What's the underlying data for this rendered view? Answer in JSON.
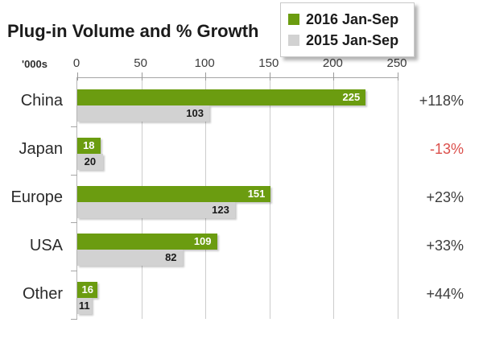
{
  "title": "Plug-in Volume and % Growth",
  "axis": {
    "unit_label": "'000s"
  },
  "colors": {
    "series_2016": "#6b9c10",
    "series_2015": "#d2d2d2",
    "value_text_2016": "#ffffff",
    "value_text_2015": "#191919",
    "growth_positive": "#3d3d3d",
    "growth_negative": "#db4f4b",
    "grid": "#cccccc"
  },
  "chart_data": {
    "type": "bar",
    "orientation": "horizontal",
    "title": "Plug-in Volume and % Growth",
    "unit": "'000s",
    "categories": [
      "China",
      "Japan",
      "Europe",
      "USA",
      "Other"
    ],
    "series": [
      {
        "name": "2016 Jan-Sep",
        "color": "#6b9c10",
        "value_text_color": "#ffffff",
        "values": [
          225,
          18,
          151,
          109,
          16
        ]
      },
      {
        "name": "2015 Jan-Sep",
        "color": "#d2d2d2",
        "value_text_color": "#191919",
        "values": [
          103,
          20,
          123,
          82,
          11
        ]
      }
    ],
    "growth_labels": [
      "+118%",
      "-13%",
      "+23%",
      "+33%",
      "+44%"
    ],
    "x_ticks": [
      0,
      50,
      100,
      150,
      200,
      250
    ],
    "xlim": [
      0,
      250
    ],
    "grid": true,
    "legend_position": "top-right"
  }
}
